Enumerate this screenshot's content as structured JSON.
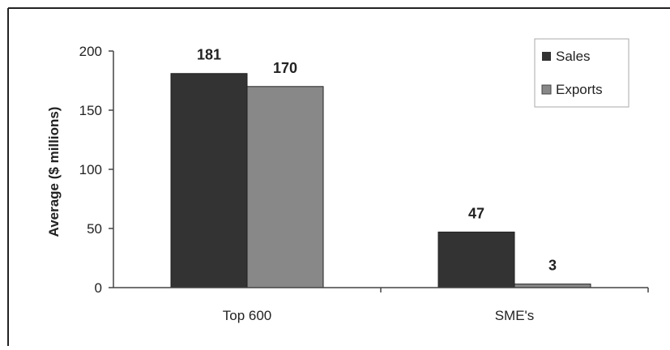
{
  "chart_data": {
    "type": "bar",
    "categories": [
      "Top 600",
      "SME's"
    ],
    "series": [
      {
        "name": "Sales",
        "values": [
          181,
          47
        ],
        "color": "#333333"
      },
      {
        "name": "Exports",
        "values": [
          170,
          3
        ],
        "color": "#888888"
      }
    ],
    "data_labels": [
      [
        "181",
        "47"
      ],
      [
        "170",
        "3"
      ]
    ],
    "ylabel": "Average ($ millions)",
    "ylim": [
      0,
      200
    ],
    "yticks": [
      0,
      50,
      100,
      150,
      200
    ],
    "legend_position": "top-right",
    "grid": false,
    "colors": {
      "axis": "#444444",
      "frame": "#222222",
      "legend_border": "#aaaaaa"
    }
  }
}
